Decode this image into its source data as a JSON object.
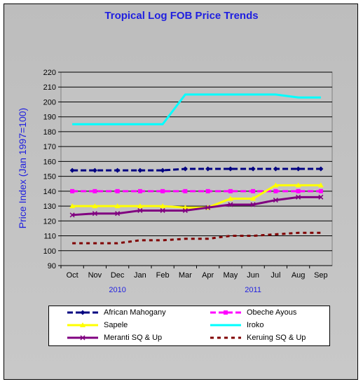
{
  "chart_data": {
    "type": "line",
    "title": "Tropical Log FOB Price Trends",
    "ylabel": "Price Index (Jan 1997=100)",
    "xlabel": "",
    "ylim": [
      90,
      220
    ],
    "yticks": [
      90,
      100,
      110,
      120,
      130,
      140,
      150,
      160,
      170,
      180,
      190,
      200,
      210,
      220
    ],
    "grid": true,
    "categories": [
      "Oct",
      "Nov",
      "Dec",
      "Jan",
      "Feb",
      "Mar",
      "Apr",
      "May",
      "Jun",
      "Jul",
      "Aug",
      "Sep"
    ],
    "year_labels": [
      {
        "text": "2010",
        "category": "Dec"
      },
      {
        "text": "2011",
        "category": "Jun"
      }
    ],
    "legend_position": "bottom",
    "series": [
      {
        "name": "African Mahogany",
        "color": "#000080",
        "dash": "8,4",
        "marker": "diamond",
        "values": [
          154,
          154,
          154,
          154,
          154,
          155,
          155,
          155,
          155,
          155,
          155,
          155
        ]
      },
      {
        "name": "Obeche Ayous",
        "color": "#ff00ff",
        "dash": "8,4",
        "marker": "square",
        "values": [
          140,
          140,
          140,
          140,
          140,
          140,
          140,
          140,
          140,
          140,
          140,
          140
        ]
      },
      {
        "name": "Sapele",
        "color": "#ffff00",
        "dash": "",
        "marker": "triangle",
        "values": [
          130,
          130,
          130,
          130,
          130,
          129,
          129,
          135,
          135,
          144,
          144,
          144
        ]
      },
      {
        "name": "Iroko",
        "color": "#00ffff",
        "dash": "",
        "marker": "none",
        "values": [
          185,
          185,
          185,
          185,
          185,
          205,
          205,
          205,
          205,
          205,
          203,
          203
        ]
      },
      {
        "name": "Meranti SQ & Up",
        "color": "#800080",
        "dash": "",
        "marker": "x",
        "values": [
          124,
          125,
          125,
          127,
          127,
          127,
          129,
          131,
          131,
          134,
          136,
          136
        ]
      },
      {
        "name": "Keruing SQ & Up",
        "color": "#800000",
        "dash": "5,5",
        "marker": "none",
        "values": [
          105,
          105,
          105,
          107,
          107,
          108,
          108,
          110,
          110,
          111,
          112,
          112
        ]
      }
    ]
  }
}
